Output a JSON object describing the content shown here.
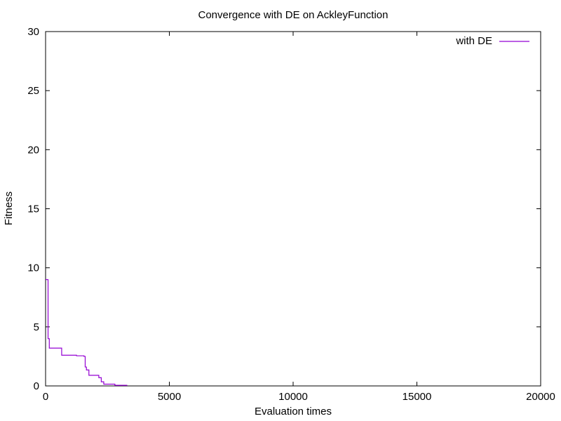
{
  "chart_data": {
    "type": "line",
    "title": "Convergence with DE on AckleyFunction",
    "xlabel": "Evaluation times",
    "ylabel": "Fitness",
    "xlim": [
      0,
      20000
    ],
    "ylim": [
      0,
      30
    ],
    "xticks": [
      0,
      5000,
      10000,
      15000,
      20000
    ],
    "yticks": [
      0,
      5,
      10,
      15,
      20,
      25,
      30
    ],
    "xtick_labels": [
      "0",
      "5000",
      "10000",
      "15000",
      "20000"
    ],
    "ytick_labels": [
      "0",
      "5",
      "10",
      "15",
      "20",
      "25",
      "30"
    ],
    "grid": false,
    "legend_position": "top-right",
    "series": [
      {
        "name": "with DE",
        "color": "#9400d3",
        "step": true,
        "x": [
          0,
          100,
          150,
          650,
          1250,
          1550,
          1600,
          1650,
          1750,
          2150,
          2250,
          2350,
          2800,
          3300
        ],
        "y": [
          9.0,
          4.0,
          3.2,
          2.6,
          2.55,
          2.5,
          1.6,
          1.35,
          0.9,
          0.7,
          0.35,
          0.15,
          0.05,
          0.05
        ]
      }
    ]
  }
}
